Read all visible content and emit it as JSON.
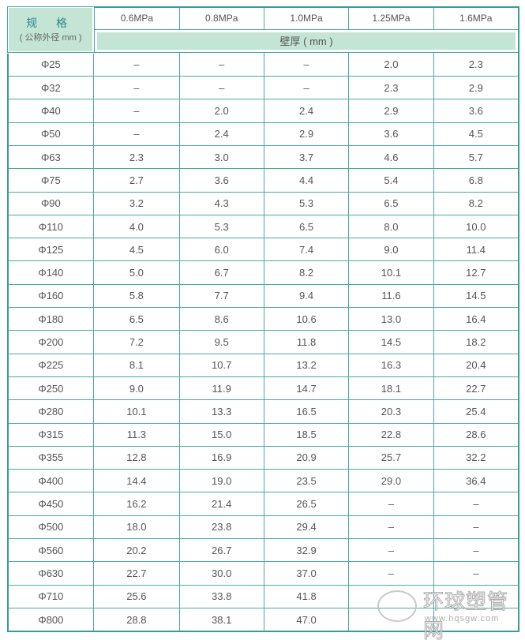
{
  "header": {
    "spec_label": "规 格",
    "spec_sub": "( 公称外径 mm )",
    "pressures": [
      "0.6MPa",
      "0.8MPa",
      "1.0MPa",
      "1.25MPa",
      "1.6MPa"
    ],
    "thickness_label": "壁厚 ( mm )"
  },
  "rows": [
    [
      "Φ25",
      "–",
      "–",
      "–",
      "2.0",
      "2.3"
    ],
    [
      "Φ32",
      "–",
      "–",
      "–",
      "2.3",
      "2.9"
    ],
    [
      "Φ40",
      "–",
      "2.0",
      "2.4",
      "2.9",
      "3.6"
    ],
    [
      "Φ50",
      "–",
      "2.4",
      "2.9",
      "3.6",
      "4.5"
    ],
    [
      "Φ63",
      "2.3",
      "3.0",
      "3.7",
      "4.6",
      "5.7"
    ],
    [
      "Φ75",
      "2.7",
      "3.6",
      "4.4",
      "5.4",
      "6.8"
    ],
    [
      "Φ90",
      "3.2",
      "4.3",
      "5.3",
      "6.5",
      "8.2"
    ],
    [
      "Φ110",
      "4.0",
      "5.3",
      "6.5",
      "8.0",
      "10.0"
    ],
    [
      "Φ125",
      "4.5",
      "6.0",
      "7.4",
      "9.0",
      "11.4"
    ],
    [
      "Φ140",
      "5.0",
      "6.7",
      "8.2",
      "10.1",
      "12.7"
    ],
    [
      "Φ160",
      "5.8",
      "7.7",
      "9.4",
      "11.6",
      "14.5"
    ],
    [
      "Φ180",
      "6.5",
      "8.6",
      "10.6",
      "13.0",
      "16.4"
    ],
    [
      "Φ200",
      "7.2",
      "9.5",
      "11.8",
      "14.5",
      "18.2"
    ],
    [
      "Φ225",
      "8.1",
      "10.7",
      "13.2",
      "16.3",
      "20.4"
    ],
    [
      "Φ250",
      "9.0",
      "11.9",
      "14.7",
      "18.1",
      "22.7"
    ],
    [
      "Φ280",
      "10.1",
      "13.3",
      "16.5",
      "20.3",
      "25.4"
    ],
    [
      "Φ315",
      "11.3",
      "15.0",
      "18.5",
      "22.8",
      "28.6"
    ],
    [
      "Φ355",
      "12.8",
      "16.9",
      "20.9",
      "25.7",
      "32.2"
    ],
    [
      "Φ400",
      "14.4",
      "19.0",
      "23.5",
      "29.0",
      "36.4"
    ],
    [
      "Φ450",
      "16.2",
      "21.4",
      "26.5",
      "–",
      "–"
    ],
    [
      "Φ500",
      "18.0",
      "23.8",
      "29.4",
      "–",
      "–"
    ],
    [
      "Φ560",
      "20.2",
      "26.7",
      "32.9",
      "–",
      "–"
    ],
    [
      "Φ630",
      "22.7",
      "30.0",
      "37.0",
      "–",
      "–"
    ],
    [
      "Φ710",
      "25.6",
      "33.8",
      "41.8",
      "",
      ""
    ],
    [
      "Φ800",
      "28.8",
      "38.1",
      "47.0",
      "",
      ""
    ]
  ],
  "watermark": {
    "name": "环球塑管网",
    "url": "www.hqsgw.com"
  },
  "colors": {
    "border": "#3a9c97",
    "header_bg": "#c4e4d6"
  }
}
